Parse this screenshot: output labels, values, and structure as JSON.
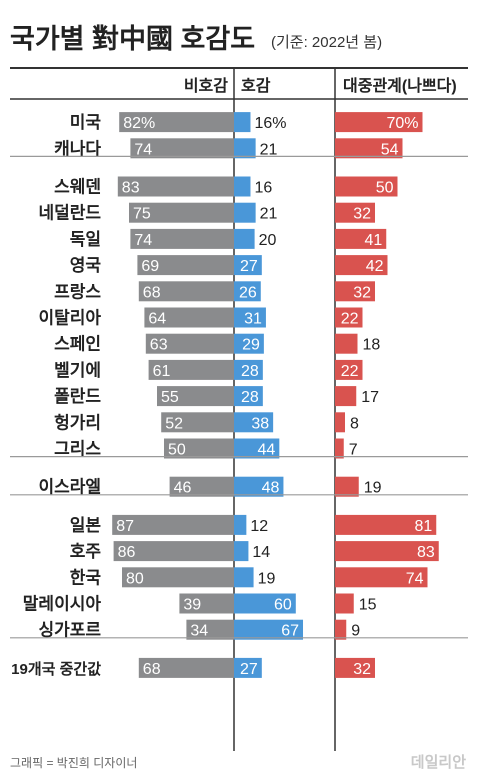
{
  "title": "국가별 對中國 호감도",
  "subtitle": "(기준: 2022년 봄)",
  "credit": "그래픽 = 박진희 디자이너",
  "watermark": "데일리안",
  "colors": {
    "unfavorable": "#8a8b8d",
    "favorable": "#4a97d8",
    "relations_bad": "#d9534f",
    "text": "#222222",
    "rule": "#333333",
    "divider": "#9a9a9a"
  },
  "chart_data": {
    "type": "bar",
    "series": [
      {
        "name": "비호감",
        "key": "unfavorable"
      },
      {
        "name": "호감",
        "key": "favorable"
      },
      {
        "name": "대중관계(나쁘다)",
        "key": "relations_bad"
      }
    ],
    "groups": [
      {
        "rows": [
          {
            "country": "미국",
            "unfavorable": 82,
            "favorable": 16,
            "relations_bad": 70,
            "labels": {
              "unfavorable": "82%",
              "favorable": "16%",
              "relations_bad": "70%"
            }
          },
          {
            "country": "캐나다",
            "unfavorable": 74,
            "favorable": 21,
            "relations_bad": 54,
            "labels": {
              "unfavorable": "74",
              "favorable": "21",
              "relations_bad": "54"
            }
          }
        ]
      },
      {
        "rows": [
          {
            "country": "스웨덴",
            "unfavorable": 83,
            "favorable": 16,
            "relations_bad": 50,
            "labels": {
              "unfavorable": "83",
              "favorable": "16",
              "relations_bad": "50"
            }
          },
          {
            "country": "네덜란드",
            "unfavorable": 75,
            "favorable": 21,
            "relations_bad": 32,
            "labels": {
              "unfavorable": "75",
              "favorable": "21",
              "relations_bad": "32"
            }
          },
          {
            "country": "독일",
            "unfavorable": 74,
            "favorable": 20,
            "relations_bad": 41,
            "labels": {
              "unfavorable": "74",
              "favorable": "20",
              "relations_bad": "41"
            }
          },
          {
            "country": "영국",
            "unfavorable": 69,
            "favorable": 27,
            "relations_bad": 42,
            "labels": {
              "unfavorable": "69",
              "favorable": "27",
              "relations_bad": "42"
            }
          },
          {
            "country": "프랑스",
            "unfavorable": 68,
            "favorable": 26,
            "relations_bad": 32,
            "labels": {
              "unfavorable": "68",
              "favorable": "26",
              "relations_bad": "32"
            }
          },
          {
            "country": "이탈리아",
            "unfavorable": 64,
            "favorable": 31,
            "relations_bad": 22,
            "labels": {
              "unfavorable": "64",
              "favorable": "31",
              "relations_bad": "22"
            }
          },
          {
            "country": "스페인",
            "unfavorable": 63,
            "favorable": 29,
            "relations_bad": 18,
            "labels": {
              "unfavorable": "63",
              "favorable": "29",
              "relations_bad": "18"
            }
          },
          {
            "country": "벨기에",
            "unfavorable": 61,
            "favorable": 28,
            "relations_bad": 22,
            "labels": {
              "unfavorable": "61",
              "favorable": "28",
              "relations_bad": "22"
            }
          },
          {
            "country": "폴란드",
            "unfavorable": 55,
            "favorable": 28,
            "relations_bad": 17,
            "labels": {
              "unfavorable": "55",
              "favorable": "28",
              "relations_bad": "17"
            }
          },
          {
            "country": "헝가리",
            "unfavorable": 52,
            "favorable": 38,
            "relations_bad": 8,
            "labels": {
              "unfavorable": "52",
              "favorable": "38",
              "relations_bad": "8"
            }
          },
          {
            "country": "그리스",
            "unfavorable": 50,
            "favorable": 44,
            "relations_bad": 7,
            "labels": {
              "unfavorable": "50",
              "favorable": "44",
              "relations_bad": "7"
            }
          }
        ]
      },
      {
        "rows": [
          {
            "country": "이스라엘",
            "unfavorable": 46,
            "favorable": 48,
            "relations_bad": 19,
            "labels": {
              "unfavorable": "46",
              "favorable": "48",
              "relations_bad": "19"
            }
          }
        ]
      },
      {
        "rows": [
          {
            "country": "일본",
            "unfavorable": 87,
            "favorable": 12,
            "relations_bad": 81,
            "labels": {
              "unfavorable": "87",
              "favorable": "12",
              "relations_bad": "81"
            }
          },
          {
            "country": "호주",
            "unfavorable": 86,
            "favorable": 14,
            "relations_bad": 83,
            "labels": {
              "unfavorable": "86",
              "favorable": "14",
              "relations_bad": "83"
            }
          },
          {
            "country": "한국",
            "unfavorable": 80,
            "favorable": 19,
            "relations_bad": 74,
            "labels": {
              "unfavorable": "80",
              "favorable": "19",
              "relations_bad": "74"
            }
          },
          {
            "country": "말레이시아",
            "unfavorable": 39,
            "favorable": 60,
            "relations_bad": 15,
            "labels": {
              "unfavorable": "39",
              "favorable": "60",
              "relations_bad": "15"
            }
          },
          {
            "country": "싱가포르",
            "unfavorable": 34,
            "favorable": 67,
            "relations_bad": 9,
            "labels": {
              "unfavorable": "34",
              "favorable": "67",
              "relations_bad": "9"
            }
          }
        ]
      },
      {
        "rows": [
          {
            "country": "19개국 중간값",
            "unfavorable": 68,
            "favorable": 27,
            "relations_bad": 32,
            "labels": {
              "unfavorable": "68",
              "favorable": "27",
              "relations_bad": "32"
            }
          }
        ]
      }
    ]
  }
}
